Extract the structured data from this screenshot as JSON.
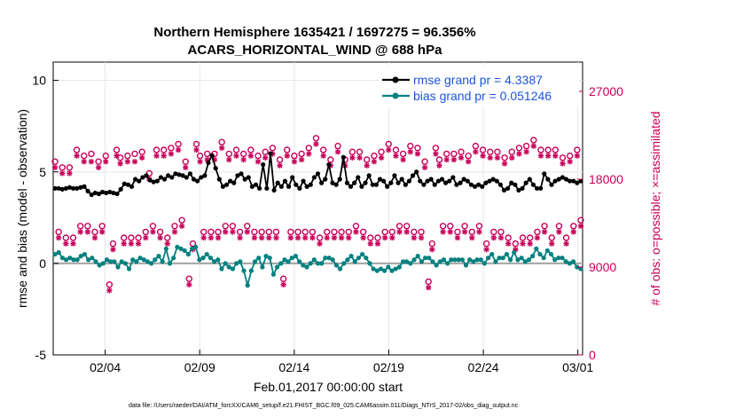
{
  "chart_data": {
    "type": "line",
    "title": "Northern Hemisphere 1635421 / 1697275 = 96.356%",
    "subtitle": "ACARS_HORIZONTAL_WIND @ 688 hPa",
    "xlabel": "Feb.01,2017 00:00:00 start",
    "ylabel": "rmse and bias (model - observation)",
    "ylabel_right": "# of obs: o=possible; ×=assimilated",
    "xlim": [
      1,
      29
    ],
    "ylim": [
      -5,
      11
    ],
    "ylim_right": [
      0,
      30000
    ],
    "x_ticks": [
      3.75,
      8.75,
      13.75,
      18.75,
      23.75,
      28.75
    ],
    "x_tick_labels": [
      "02/04",
      "02/09",
      "02/14",
      "02/19",
      "02/24",
      "03/01"
    ],
    "y_ticks": [
      -5,
      0,
      5,
      10
    ],
    "y_tick_labels": [
      "-5",
      "0",
      "5",
      "10"
    ],
    "y_right_ticks": [
      0,
      9000,
      18000,
      27000
    ],
    "y_right_tick_labels": [
      "0",
      "9000",
      "18000",
      "27000"
    ],
    "legend_position": "top-right",
    "series": [
      {
        "name": "rmse grand pr = 4.3387",
        "color": "#000000",
        "marker": "circle",
        "values": [
          4.1,
          4.1,
          4.05,
          4.1,
          4.15,
          4.1,
          4.1,
          4.15,
          4.2,
          3.95,
          3.75,
          3.85,
          3.8,
          3.9,
          3.85,
          3.9,
          3.85,
          3.8,
          4.05,
          4.35,
          4.3,
          4.2,
          4.6,
          4.5,
          4.7,
          4.8,
          4.55,
          4.45,
          4.5,
          4.7,
          4.6,
          4.8,
          4.7,
          4.9,
          4.85,
          4.8,
          4.7,
          4.9,
          4.6,
          4.5,
          4.7,
          4.8,
          5.5,
          5.9,
          5.2,
          4.6,
          4.2,
          4.3,
          4.5,
          4.4,
          4.8,
          4.9,
          4.6,
          4.7,
          4.2,
          4.3,
          4.1,
          5.4,
          4.1,
          6.0,
          4.0,
          4.4,
          4.2,
          4.5,
          4.2,
          4.7,
          4.3,
          4.1,
          4.5,
          4.2,
          4.3,
          4.7,
          4.9,
          4.4,
          4.6,
          5.4,
          4.4,
          4.3,
          4.6,
          5.8,
          4.4,
          4.2,
          4.4,
          4.7,
          4.2,
          4.4,
          4.8,
          4.3,
          4.3,
          4.6,
          4.5,
          4.2,
          4.4,
          4.8,
          4.4,
          4.6,
          4.3,
          4.5,
          4.8,
          5.0,
          4.5,
          4.3,
          4.5,
          4.6,
          4.3,
          4.5,
          4.6,
          4.4,
          4.5,
          4.7,
          4.3,
          4.4,
          4.6,
          4.5,
          4.3,
          4.2,
          4.3,
          4.2,
          4.4,
          4.5,
          4.6,
          4.5,
          4.3,
          4.0,
          4.1,
          4.4,
          4.3,
          4.0,
          4.1,
          4.4,
          4.6,
          4.3,
          4.1,
          4.1,
          4.9,
          4.6,
          4.3,
          4.5,
          4.6,
          4.7,
          4.6,
          4.5,
          4.5,
          4.4,
          4.5
        ]
      },
      {
        "name": "bias grand pr = 0.051246",
        "color": "#008080",
        "marker": "circle",
        "values": [
          0.5,
          0.6,
          0.3,
          0.2,
          0.3,
          0.2,
          0.2,
          0.4,
          0.5,
          0.2,
          0.3,
          0.1,
          -0.1,
          0.0,
          0.2,
          0.1,
          0.1,
          -0.2,
          0.1,
          0.0,
          -0.3,
          0.2,
          0.1,
          0.3,
          0.2,
          0.1,
          0.0,
          0.2,
          0.4,
          0.1,
          0.8,
          0.0,
          0.3,
          0.9,
          0.8,
          0.7,
          0.5,
          0.8,
          0.9,
          0.2,
          0.3,
          0.5,
          0.3,
          0.1,
          0.2,
          -0.3,
          0.0,
          -0.2,
          -0.3,
          0.0,
          0.1,
          -0.4,
          -1.2,
          -0.4,
          0.1,
          0.3,
          -0.2,
          0.4,
          0.3,
          -0.6,
          -0.2,
          0.0,
          0.2,
          0.1,
          0.3,
          0.4,
          0.1,
          -0.1,
          -0.2,
          0.0,
          0.2,
          0.0,
          0.0,
          0.3,
          0.3,
          0.2,
          -0.1,
          -0.3,
          0.0,
          0.2,
          0.4,
          0.1,
          0.3,
          0.5,
          0.3,
          0.0,
          -0.3,
          -0.4,
          -0.3,
          -0.4,
          -0.2,
          -0.4,
          -0.3,
          -0.2,
          0.1,
          0.1,
          0.0,
          0.2,
          0.4,
          0.1,
          0.3,
          0.3,
          0.1,
          -0.1,
          0.1,
          0.2,
          0.0,
          0.2,
          0.2,
          0.2,
          0.2,
          -0.1,
          0.2,
          0.1,
          0.2,
          0.2,
          0.0,
          0.3,
          0.5,
          0.1,
          0.3,
          0.3,
          0.5,
          0.2,
          0.6,
          0.2,
          0.3,
          0.1,
          0.2,
          0.4,
          0.8,
          0.5,
          0.3,
          0.7,
          0.5,
          0.2,
          0.3,
          0.3,
          0.1,
          0.0,
          0.1,
          -0.2,
          -0.3
        ]
      },
      {
        "name": "observations possible",
        "color": "#c8005a",
        "marker": "o",
        "axis": "right",
        "values": [
          19800,
          12600,
          19200,
          12000,
          19200,
          12000,
          21000,
          13200,
          20400,
          13200,
          20600,
          12600,
          19800,
          13200,
          20400,
          7200,
          11400,
          21000,
          20200,
          12000,
          20400,
          12000,
          20600,
          12000,
          20800,
          12600,
          18600,
          13200,
          21000,
          12600,
          21000,
          12000,
          21200,
          13200,
          21600,
          13800,
          19800,
          7800,
          11400,
          21600,
          20400,
          12600,
          20600,
          12600,
          20600,
          12600,
          21800,
          13200,
          20600,
          13200,
          21000,
          12600,
          20600,
          13200,
          21000,
          12600,
          20400,
          12600,
          20800,
          12600,
          21200,
          12600,
          20000,
          7800,
          21000,
          12600,
          20400,
          12600,
          20600,
          12600,
          21200,
          12600,
          22200,
          12000,
          21000,
          12600,
          20000,
          12600,
          21400,
          12600,
          20000,
          12600,
          20800,
          13200,
          20800,
          12600,
          20000,
          12000,
          20400,
          12000,
          20800,
          12600,
          21600,
          12600,
          21000,
          13200,
          20600,
          13200,
          21400,
          12600,
          21200,
          12600,
          19800,
          7500,
          11400,
          21200,
          20000,
          13200,
          20600,
          13200,
          20600,
          12600,
          20800,
          13200,
          20400,
          12600,
          21400,
          13200,
          21000,
          11400,
          20800,
          12600,
          20800,
          12600,
          20200,
          12000,
          20800,
          11400,
          21200,
          12000,
          21400,
          12000,
          22000,
          12600,
          21000,
          13200,
          21000,
          12000,
          21000,
          13200,
          20200,
          12000,
          20400,
          13200,
          21000,
          13800
        ]
      },
      {
        "name": "observations assimilated",
        "color": "#c8005a",
        "marker": "x",
        "axis": "right",
        "values": [
          19200,
          12000,
          18600,
          11400,
          18600,
          11400,
          20400,
          12600,
          19800,
          12600,
          19800,
          12000,
          19200,
          12600,
          19800,
          6600,
          10800,
          20400,
          19600,
          11400,
          19800,
          11400,
          19800,
          11400,
          20200,
          12000,
          18000,
          12600,
          20400,
          12000,
          20400,
          11400,
          20600,
          12600,
          21000,
          13200,
          19200,
          7200,
          10800,
          21000,
          19800,
          12000,
          20000,
          12000,
          20000,
          12000,
          21200,
          12600,
          20000,
          12600,
          20400,
          12000,
          20000,
          12600,
          20400,
          12000,
          19800,
          12000,
          20200,
          12000,
          20600,
          12000,
          19400,
          7200,
          20400,
          12000,
          19800,
          12000,
          20000,
          12000,
          20600,
          12000,
          21600,
          11400,
          20400,
          12000,
          19400,
          12000,
          20800,
          12000,
          19400,
          12000,
          20200,
          12600,
          20200,
          12000,
          19400,
          11400,
          19800,
          11400,
          20200,
          12000,
          21000,
          12000,
          20400,
          12600,
          20000,
          12600,
          20800,
          12000,
          20600,
          12000,
          19200,
          6900,
          10800,
          20600,
          19400,
          12600,
          20000,
          12600,
          20000,
          12000,
          20200,
          12600,
          19800,
          12000,
          20800,
          12600,
          20400,
          10800,
          20200,
          12000,
          20200,
          12000,
          19600,
          11400,
          20200,
          10800,
          20600,
          11400,
          20800,
          11400,
          21400,
          12000,
          20400,
          12600,
          20400,
          11400,
          20400,
          12600,
          19600,
          11400,
          19800,
          12600,
          20400,
          13200
        ]
      }
    ]
  },
  "footer_text": "data file: /Users/raeder/DAI/ATM_forcXX/CAM6_setup/f.e21.FHIST_BGC.f09_025.CAM6assim.011/Diags_NTrS_2017-02/obs_diag_output.nc",
  "colors": {
    "rmse": "#000000",
    "bias": "#008080",
    "obs": "#c8005a",
    "legend_text": "#1a55e0",
    "zero_line": "#aaaaaa"
  }
}
